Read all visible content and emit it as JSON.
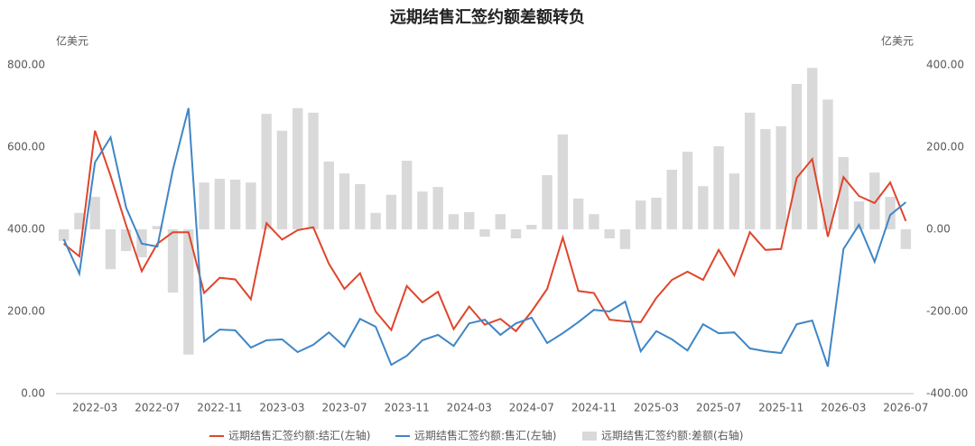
{
  "chart_data": {
    "type": "combo",
    "title": "远期结售汇签约额差额转负",
    "y_unit": "亿美元",
    "y2_unit": "亿美元",
    "categories": [
      null,
      null,
      "2022-03",
      null,
      null,
      null,
      "2022-07",
      null,
      null,
      null,
      "2022-11",
      null,
      null,
      null,
      "2023-03",
      null,
      null,
      null,
      "2023-07",
      null,
      null,
      null,
      "2023-11",
      null,
      null,
      null,
      "2024-03",
      null,
      null,
      null,
      "2024-07",
      null,
      null,
      null,
      "2024-11",
      null,
      null,
      null,
      "2025-03",
      null,
      null,
      null,
      "2025-07",
      null,
      null,
      null,
      "2025-11",
      null,
      null,
      null,
      "2026-03",
      null,
      null,
      null,
      "2026-07"
    ],
    "ylim": [
      0,
      800
    ],
    "yticks": [
      {
        "value": 0,
        "label": "0.00"
      },
      {
        "value": 200,
        "label": "200.00"
      },
      {
        "value": 400,
        "label": "400.00"
      },
      {
        "value": 600,
        "label": "600.00"
      },
      {
        "value": 800,
        "label": "800.00"
      }
    ],
    "y2lim": [
      -400,
      400
    ],
    "y2ticks": [
      {
        "value": -400,
        "label": "-400.00"
      },
      {
        "value": -200,
        "label": "-200.00"
      },
      {
        "value": 0,
        "label": "0.00"
      },
      {
        "value": 200,
        "label": "200.00"
      },
      {
        "value": 400,
        "label": "400.00"
      }
    ],
    "series": [
      {
        "name": "远期结售汇签约额:差额(右轴)",
        "type": "bar",
        "axis": "y2",
        "color": "#d9d9d9",
        "values": [
          -28,
          40,
          79,
          -97,
          -53,
          -68,
          8,
          -154,
          -305,
          114,
          123,
          121,
          114,
          281,
          240,
          295,
          284,
          165,
          136,
          110,
          40,
          84,
          167,
          92,
          103,
          37,
          42,
          -18,
          37,
          -22,
          11,
          132,
          231,
          75,
          37,
          -22,
          -48,
          70,
          77,
          145,
          189,
          105,
          202,
          136,
          284,
          244,
          251,
          354,
          393,
          316,
          176,
          68,
          138,
          79,
          -48
        ]
      },
      {
        "name": "远期结售汇签约额:结汇(左轴)",
        "type": "line",
        "axis": "y",
        "color": "#e0452b",
        "values": [
          365,
          334,
          640,
          530,
          410,
          298,
          365,
          393,
          393,
          245,
          282,
          278,
          230,
          415,
          375,
          398,
          405,
          316,
          255,
          293,
          200,
          155,
          262,
          222,
          248,
          157,
          212,
          168,
          182,
          152,
          200,
          255,
          380,
          250,
          245,
          180,
          176,
          174,
          233,
          277,
          297,
          277,
          350,
          288,
          393,
          350,
          352,
          525,
          571,
          382,
          527,
          481,
          464,
          514,
          420
        ]
      },
      {
        "name": "远期结售汇签约额:售汇(左轴)",
        "type": "line",
        "axis": "y",
        "color": "#3f86c6",
        "values": [
          376,
          292,
          563,
          624,
          453,
          365,
          358,
          545,
          695,
          127,
          156,
          154,
          112,
          130,
          132,
          101,
          119,
          149,
          114,
          182,
          163,
          70,
          92,
          130,
          143,
          116,
          171,
          180,
          143,
          171,
          185,
          123,
          147,
          174,
          204,
          200,
          224,
          103,
          152,
          132,
          105,
          169,
          147,
          149,
          110,
          103,
          99,
          169,
          178,
          66,
          352,
          411,
          321,
          435,
          466
        ]
      }
    ]
  }
}
